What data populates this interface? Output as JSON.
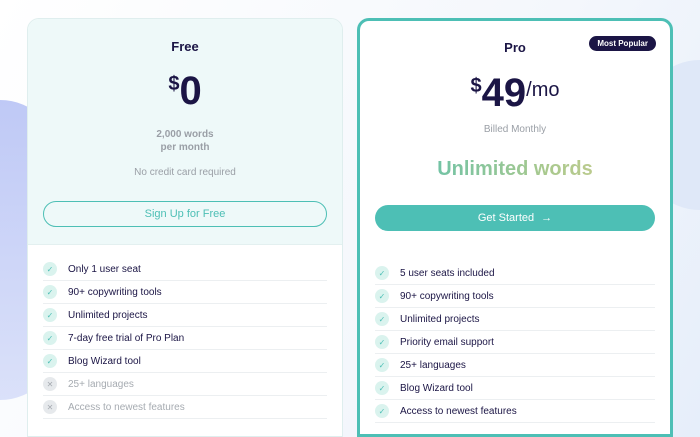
{
  "free": {
    "title": "Free",
    "currency": "$",
    "price": "0",
    "words_line1": "2,000 words",
    "words_line2": "per month",
    "note": "No credit card required",
    "cta": "Sign Up for Free",
    "features": [
      {
        "label": "Only 1 user seat",
        "included": true
      },
      {
        "label": "90+ copywriting tools",
        "included": true
      },
      {
        "label": "Unlimited projects",
        "included": true
      },
      {
        "label": "7-day free trial of Pro Plan",
        "included": true
      },
      {
        "label": "Blog Wizard tool",
        "included": true
      },
      {
        "label": "25+ languages",
        "included": false
      },
      {
        "label": "Access to newest features",
        "included": false
      }
    ]
  },
  "pro": {
    "title": "Pro",
    "badge": "Most Popular",
    "currency": "$",
    "price": "49",
    "period": "/mo",
    "billing": "Billed Monthly",
    "highlight": "Unlimited words",
    "cta": "Get Started",
    "cta_icon": "arrow-right-icon",
    "features": [
      {
        "label": "5 user seats included",
        "included": true
      },
      {
        "label": "90+ copywriting tools",
        "included": true
      },
      {
        "label": "Unlimited projects",
        "included": true
      },
      {
        "label": "Priority email support",
        "included": true
      },
      {
        "label": "25+ languages",
        "included": true
      },
      {
        "label": "Blog Wizard tool",
        "included": true
      },
      {
        "label": "Access to newest features",
        "included": true
      }
    ]
  },
  "colors": {
    "accent": "#4dbfb5",
    "navy": "#1b1545"
  }
}
